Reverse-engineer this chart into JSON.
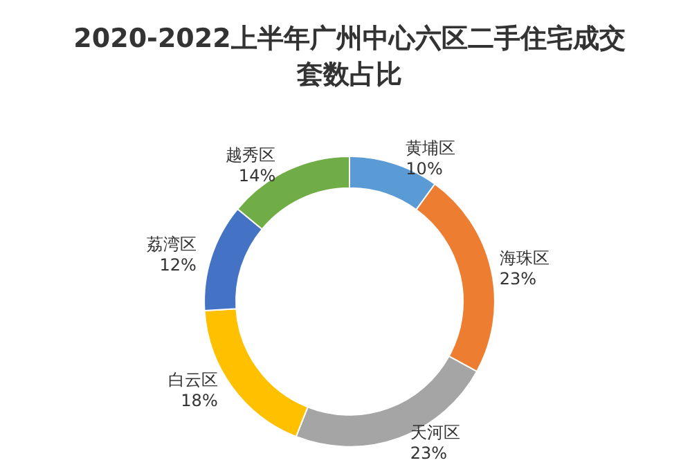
{
  "chart_data": {
    "type": "donut",
    "title": "2020-2022上半年广州中心六区二手住宅成交套数占比",
    "categories": [
      "黄埔区",
      "海珠区",
      "天河区",
      "白云区",
      "荔湾区",
      "越秀区"
    ],
    "values": [
      10,
      23,
      23,
      18,
      12,
      14
    ],
    "value_labels": [
      "10%",
      "23%",
      "23%",
      "18%",
      "12%",
      "14%"
    ],
    "colors": [
      "#5b9bd5",
      "#ed7d31",
      "#a5a5a5",
      "#ffc000",
      "#4472c4",
      "#70ad47"
    ],
    "legend": false
  }
}
